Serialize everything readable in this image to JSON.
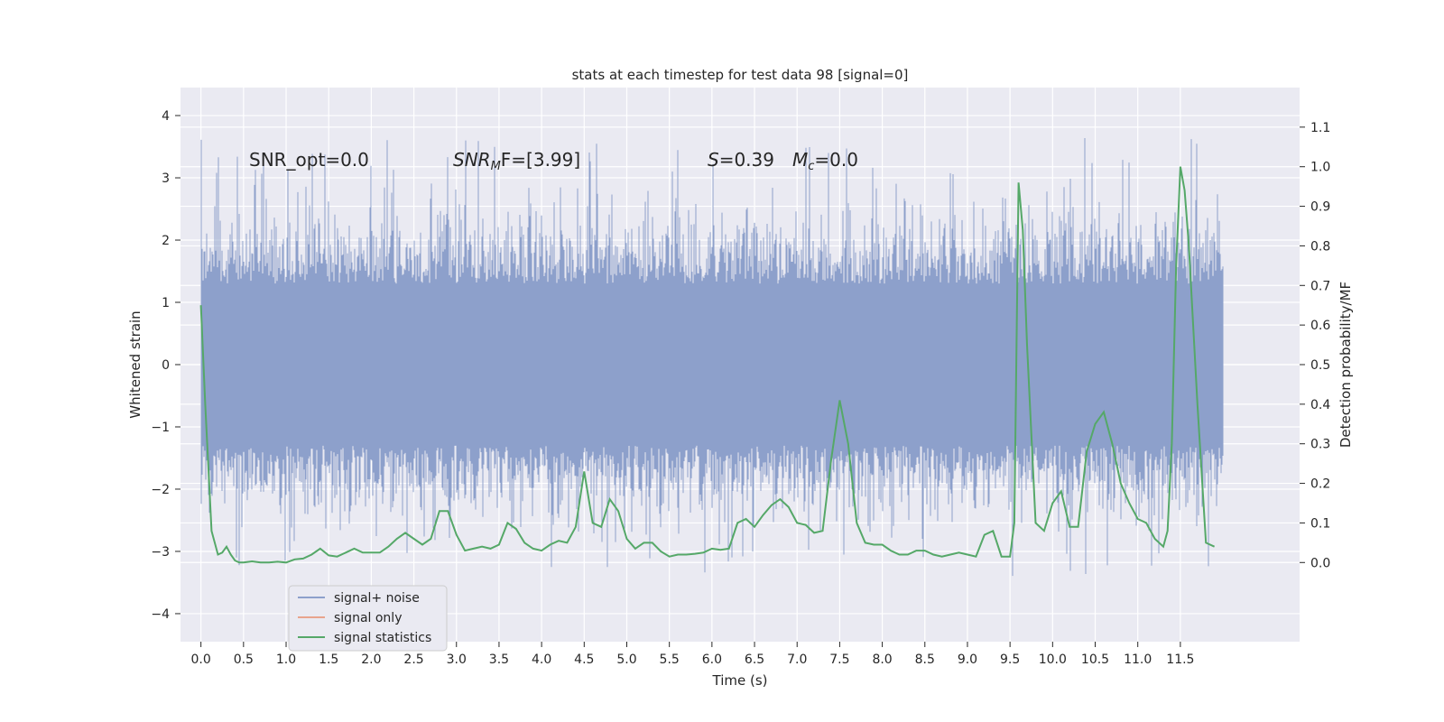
{
  "chart_data": {
    "type": "line",
    "title": "stats at each timestep for test data 98 [signal=0]",
    "xlabel": "Time (s)",
    "ylabel": "Whitened strain",
    "ylabel_right": "Detection probability/MF",
    "xlim": [
      -0.24,
      12.9
    ],
    "ylim": [
      -4.45,
      4.45
    ],
    "ylim_right": [
      -0.2,
      1.2
    ],
    "x_ticks": [
      "0.0",
      "0.5",
      "1.0",
      "1.5",
      "2.0",
      "2.5",
      "3.0",
      "3.5",
      "4.0",
      "4.5",
      "5.0",
      "5.5",
      "6.0",
      "6.5",
      "7.0",
      "7.5",
      "8.0",
      "8.5",
      "9.0",
      "9.5",
      "10.0",
      "10.5",
      "11.0",
      "11.5"
    ],
    "y_ticks": [
      "4",
      "3",
      "2",
      "1",
      "0",
      "−1",
      "−2",
      "−3",
      "−4"
    ],
    "y_right_ticks": [
      "1.1",
      "1.0",
      "0.9",
      "0.8",
      "0.7",
      "0.6",
      "0.5",
      "0.4",
      "0.3",
      "0.2",
      "0.1",
      "0.0"
    ],
    "grid": true,
    "legend_position": "lower-left",
    "annotations": [
      {
        "key": "snr_opt",
        "text": "SNR_opt=0.0"
      },
      {
        "key": "snr_mf",
        "text": "SNR",
        "sub": "M",
        "rest": "F=[3.99]"
      },
      {
        "key": "s_stat",
        "text": "S",
        "rest": "=0.39"
      },
      {
        "key": "mc",
        "text": "M",
        "sub": "c",
        "rest": "=0.0"
      }
    ],
    "series": [
      {
        "name": "signal+ noise",
        "color": "#8da0cb",
        "style": "dense noise band, roughly within ±1.3 with spikes up to about 4.1 and down to about −4.0",
        "x_range": [
          0.0,
          12.0
        ]
      },
      {
        "name": "signal only",
        "color": "#e8a48d",
        "values": []
      },
      {
        "name": "signal statistics",
        "color": "#55a868",
        "axis": "right",
        "x": [
          0.0,
          0.05,
          0.125,
          0.2,
          0.25,
          0.3,
          0.35,
          0.4,
          0.45,
          0.5,
          0.6,
          0.7,
          0.8,
          0.9,
          1.0,
          1.1,
          1.2,
          1.3,
          1.4,
          1.5,
          1.6,
          1.7,
          1.8,
          1.9,
          2.0,
          2.1,
          2.2,
          2.3,
          2.4,
          2.5,
          2.6,
          2.7,
          2.8,
          2.9,
          3.0,
          3.1,
          3.2,
          3.3,
          3.4,
          3.5,
          3.6,
          3.7,
          3.8,
          3.9,
          4.0,
          4.1,
          4.2,
          4.3,
          4.4,
          4.5,
          4.6,
          4.7,
          4.8,
          4.9,
          5.0,
          5.1,
          5.2,
          5.3,
          5.4,
          5.5,
          5.6,
          5.7,
          5.8,
          5.9,
          6.0,
          6.1,
          6.2,
          6.3,
          6.4,
          6.5,
          6.6,
          6.7,
          6.8,
          6.9,
          7.0,
          7.1,
          7.2,
          7.3,
          7.4,
          7.5,
          7.6,
          7.7,
          7.8,
          7.9,
          8.0,
          8.1,
          8.2,
          8.3,
          8.4,
          8.5,
          8.6,
          8.7,
          8.8,
          8.9,
          9.0,
          9.1,
          9.2,
          9.3,
          9.4,
          9.5,
          9.55,
          9.6,
          9.65,
          9.7,
          9.8,
          9.9,
          10.0,
          10.1,
          10.2,
          10.3,
          10.4,
          10.5,
          10.6,
          10.7,
          10.8,
          10.9,
          11.0,
          11.1,
          11.2,
          11.3,
          11.35,
          11.4,
          11.45,
          11.5,
          11.55,
          11.6,
          11.7,
          11.8,
          11.9
        ],
        "values": [
          0.65,
          0.4,
          0.08,
          0.02,
          0.025,
          0.04,
          0.02,
          0.005,
          0.0,
          0.0,
          0.003,
          0.0,
          0.0,
          0.002,
          0.0,
          0.008,
          0.01,
          0.02,
          0.035,
          0.018,
          0.015,
          0.025,
          0.035,
          0.025,
          0.025,
          0.025,
          0.04,
          0.06,
          0.075,
          0.06,
          0.045,
          0.06,
          0.13,
          0.13,
          0.07,
          0.03,
          0.035,
          0.04,
          0.035,
          0.045,
          0.1,
          0.085,
          0.05,
          0.035,
          0.03,
          0.045,
          0.055,
          0.05,
          0.09,
          0.23,
          0.1,
          0.09,
          0.16,
          0.13,
          0.06,
          0.035,
          0.05,
          0.05,
          0.028,
          0.015,
          0.02,
          0.02,
          0.022,
          0.025,
          0.035,
          0.032,
          0.035,
          0.1,
          0.11,
          0.09,
          0.12,
          0.145,
          0.16,
          0.14,
          0.1,
          0.095,
          0.075,
          0.08,
          0.26,
          0.41,
          0.3,
          0.1,
          0.05,
          0.045,
          0.045,
          0.03,
          0.02,
          0.02,
          0.03,
          0.03,
          0.02,
          0.015,
          0.02,
          0.025,
          0.02,
          0.015,
          0.07,
          0.08,
          0.015,
          0.015,
          0.1,
          0.96,
          0.84,
          0.55,
          0.1,
          0.08,
          0.15,
          0.18,
          0.09,
          0.09,
          0.28,
          0.35,
          0.38,
          0.3,
          0.2,
          0.15,
          0.11,
          0.1,
          0.06,
          0.04,
          0.08,
          0.3,
          0.75,
          1.0,
          0.94,
          0.8,
          0.4,
          0.05,
          0.04
        ]
      }
    ]
  }
}
